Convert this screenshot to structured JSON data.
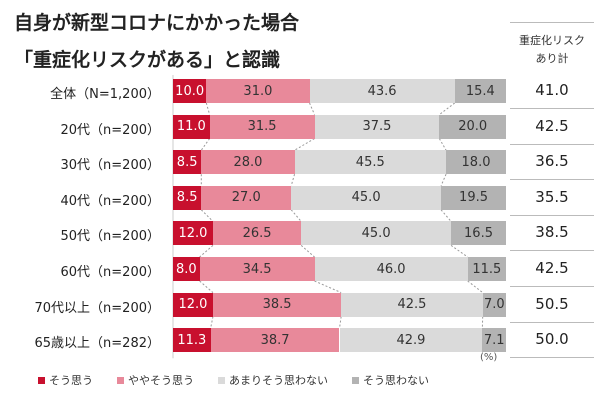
{
  "chart_data": {
    "type": "bar",
    "stacked": true,
    "orientation": "horizontal",
    "title": "自身が新型コロナにかかった場合",
    "subtitle": "「重症化リスクがある」と認識",
    "unit_label": "(%)",
    "categories": [
      "全体（N=1,200）",
      "20代（n=200）",
      "30代（n=200）",
      "40代（n=200）",
      "50代（n=200）",
      "60代（n=200）",
      "70代以上（n=200）",
      "65歳以上（n=282）"
    ],
    "series": [
      {
        "name": "そう思う",
        "color": "#c8102e",
        "values": [
          10.0,
          11.0,
          8.5,
          8.5,
          12.0,
          8.0,
          12.0,
          11.3
        ]
      },
      {
        "name": "ややそう思う",
        "color": "#e8899a",
        "values": [
          31.0,
          31.5,
          28.0,
          27.0,
          26.5,
          34.5,
          38.5,
          38.7
        ]
      },
      {
        "name": "あまりそう思わない",
        "color": "#dadada",
        "values": [
          43.6,
          37.5,
          45.5,
          45.0,
          45.0,
          46.0,
          42.5,
          42.9
        ]
      },
      {
        "name": "そう思わない",
        "color": "#b3b3b3",
        "values": [
          15.4,
          20.0,
          18.0,
          19.5,
          16.5,
          11.5,
          7.0,
          7.1
        ]
      }
    ],
    "summary_header": "重症化リスクあり計",
    "summary_header_lines": [
      "重症化リスク",
      "あり計"
    ],
    "summary_values": [
      "41.0",
      "42.5",
      "36.5",
      "35.5",
      "38.5",
      "42.5",
      "50.5",
      "50.0"
    ],
    "xlim": [
      0,
      100
    ],
    "legend_position": "bottom"
  }
}
